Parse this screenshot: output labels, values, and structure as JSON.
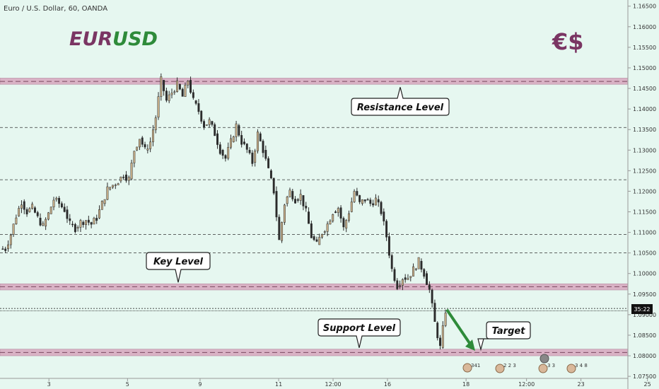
{
  "header": {
    "symbol_line": "Euro / U.S. Dollar, 60, OANDA"
  },
  "brand": {
    "title_part1": "EUR",
    "title_part2": "USD",
    "logo": "€$",
    "color_part1": "#7a3563",
    "color_part2": "#2e8b3a"
  },
  "colors": {
    "background": "#e6f7f0",
    "candle": "#2b2b2b",
    "zone_fill": "#d6a6bd",
    "zone_dash": "#7a4a60",
    "arrow": "#2e8b3a"
  },
  "price_badge": "35:22",
  "events": {
    "e1": "341",
    "e2": "2 2 3",
    "e3": "3 3",
    "e4": "3 4 8"
  },
  "chart_data": {
    "type": "candlestick",
    "title": "Euro / U.S. Dollar, 60, OANDA",
    "ylim": [
      1.0745,
      1.1665
    ],
    "y_ticks": [
      "1.16500",
      "1.16000",
      "1.15500",
      "1.15000",
      "1.14500",
      "1.14000",
      "1.13500",
      "1.13000",
      "1.12500",
      "1.12000",
      "1.11500",
      "1.11000",
      "1.10500",
      "1.10000",
      "1.09500",
      "1.09000",
      "1.08500",
      "1.08000",
      "1.07500"
    ],
    "x_ticks": [
      {
        "label": "3",
        "i": 4
      },
      {
        "label": "5",
        "i": 17
      },
      {
        "label": "9",
        "i": 29
      },
      {
        "label": "11",
        "i": 42
      },
      {
        "label": "12:00",
        "i": 51
      },
      {
        "label": "16",
        "i": 60
      },
      {
        "label": "18",
        "i": 73
      },
      {
        "label": "12:00",
        "i": 83
      },
      {
        "label": "23",
        "i": 92
      },
      {
        "label": "25",
        "i": 103
      }
    ],
    "series": [
      {
        "values": [
          1.106,
          1.1095,
          1.114,
          1.1175,
          1.115,
          1.116,
          1.1135,
          1.1115,
          1.1145,
          1.118,
          1.117,
          1.1155,
          1.112,
          1.111,
          1.1125,
          1.113,
          1.112,
          1.1135,
          1.117,
          1.1205,
          1.1215,
          1.1225,
          1.124,
          1.123,
          1.13,
          1.133,
          1.13,
          1.132,
          1.138,
          1.147,
          1.142,
          1.144,
          1.146,
          1.143,
          1.147,
          1.142,
          1.1395,
          1.136,
          1.137,
          1.134,
          1.13,
          1.128,
          1.132,
          1.136,
          1.132,
          1.13,
          1.127,
          1.134,
          1.13,
          1.125,
          1.12,
          1.108,
          1.117,
          1.12,
          1.118,
          1.119,
          1.115,
          1.109,
          1.107,
          1.11,
          1.112,
          1.115,
          1.116,
          1.111,
          1.115,
          1.12,
          1.117,
          1.118,
          1.117,
          1.118,
          1.115,
          1.109,
          1.101,
          1.097,
          1.099,
          1.099,
          1.101,
          1.103,
          1.1,
          1.096,
          1.088,
          1.082,
          1.091
        ]
      }
    ],
    "levels": [
      {
        "label": "Resistance Level",
        "y": 1.1467,
        "zone": [
          1.146,
          1.1475
        ]
      },
      {
        "label": "Key Level",
        "y": 1.0968,
        "zone": [
          1.096,
          1.0975
        ]
      },
      {
        "label": "Support Level",
        "y": 1.0808,
        "zone": [
          1.08,
          1.0816
        ]
      }
    ],
    "dashed_lines": [
      1.1355,
      1.1228,
      1.1095,
      1.105
    ],
    "current_price_lines": [
      1.0915,
      1.0909
    ],
    "target": {
      "label": "Target",
      "from": 1.0912,
      "to": 1.0812
    }
  }
}
